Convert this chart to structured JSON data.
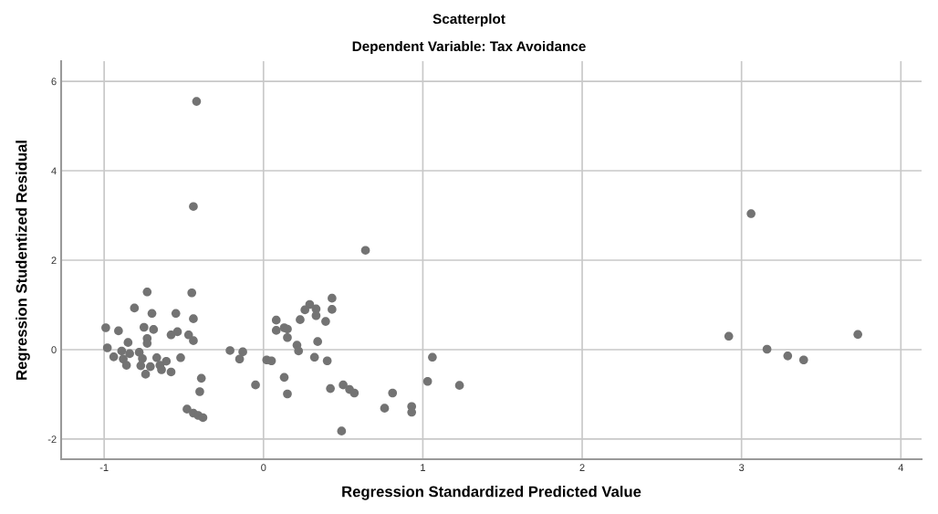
{
  "chart_data": {
    "type": "scatter",
    "title": "Scatterplot",
    "subtitle": "Dependent Variable: Tax Avoidance",
    "xlabel": "Regression Standardized Predicted Value",
    "ylabel": "Regression Studentized Residual",
    "xlim": [
      -1.27,
      4.13
    ],
    "ylim": [
      -2.45,
      6.45
    ],
    "xticks": [
      -1,
      0,
      1,
      2,
      3,
      4
    ],
    "yticks": [
      -2,
      0,
      2,
      4,
      6
    ],
    "grid": true,
    "marker": "circle",
    "series": [
      {
        "color": "#737373",
        "x": [
          -0.99,
          -0.98,
          -0.42,
          -0.44,
          -0.73,
          -0.45,
          -0.81,
          -0.7,
          -0.55,
          -0.44,
          -0.91,
          -0.75,
          -0.69,
          -0.58,
          -0.54,
          -0.47,
          -0.44,
          -0.73,
          -0.73,
          -0.85,
          -0.94,
          -0.89,
          -0.88,
          -0.84,
          -0.86,
          -0.78,
          -0.76,
          -0.77,
          -0.74,
          -0.71,
          -0.67,
          -0.65,
          -0.64,
          -0.61,
          -0.58,
          -0.52,
          -0.39,
          -0.4,
          -0.48,
          -0.44,
          -0.41,
          -0.38,
          -0.21,
          -0.13,
          -0.15,
          0.64,
          0.43,
          0.43,
          0.29,
          0.26,
          0.33,
          0.33,
          0.39,
          0.23,
          0.08,
          0.08,
          0.13,
          0.15,
          0.15,
          0.34,
          0.21,
          0.22,
          0.02,
          0.05,
          0.32,
          0.4,
          1.06,
          0.13,
          -0.05,
          0.15,
          0.42,
          0.5,
          0.54,
          0.57,
          0.81,
          1.03,
          1.23,
          0.76,
          0.93,
          0.93,
          0.49,
          3.06,
          2.92,
          3.16,
          3.29,
          3.39,
          3.73
        ],
        "values": [
          0.49,
          0.04,
          5.55,
          3.2,
          1.29,
          1.27,
          0.93,
          0.81,
          0.81,
          0.69,
          0.42,
          0.5,
          0.45,
          0.33,
          0.4,
          0.33,
          0.2,
          0.25,
          0.14,
          0.16,
          -0.16,
          -0.03,
          -0.21,
          -0.09,
          -0.35,
          -0.06,
          -0.2,
          -0.36,
          -0.55,
          -0.38,
          -0.18,
          -0.35,
          -0.45,
          -0.26,
          -0.5,
          -0.18,
          -0.64,
          -0.94,
          -1.33,
          -1.42,
          -1.47,
          -1.52,
          -0.02,
          -0.05,
          -0.21,
          2.22,
          1.15,
          0.9,
          1.01,
          0.89,
          0.91,
          0.76,
          0.63,
          0.67,
          0.66,
          0.43,
          0.49,
          0.46,
          0.27,
          0.18,
          0.1,
          -0.03,
          -0.23,
          -0.25,
          -0.17,
          -0.25,
          -0.17,
          -0.62,
          -0.79,
          -0.99,
          -0.87,
          -0.79,
          -0.89,
          -0.97,
          -0.97,
          -0.71,
          -0.8,
          -1.31,
          -1.27,
          -1.4,
          -1.82,
          3.04,
          0.3,
          0.01,
          -0.14,
          -0.23,
          0.34
        ]
      }
    ]
  }
}
